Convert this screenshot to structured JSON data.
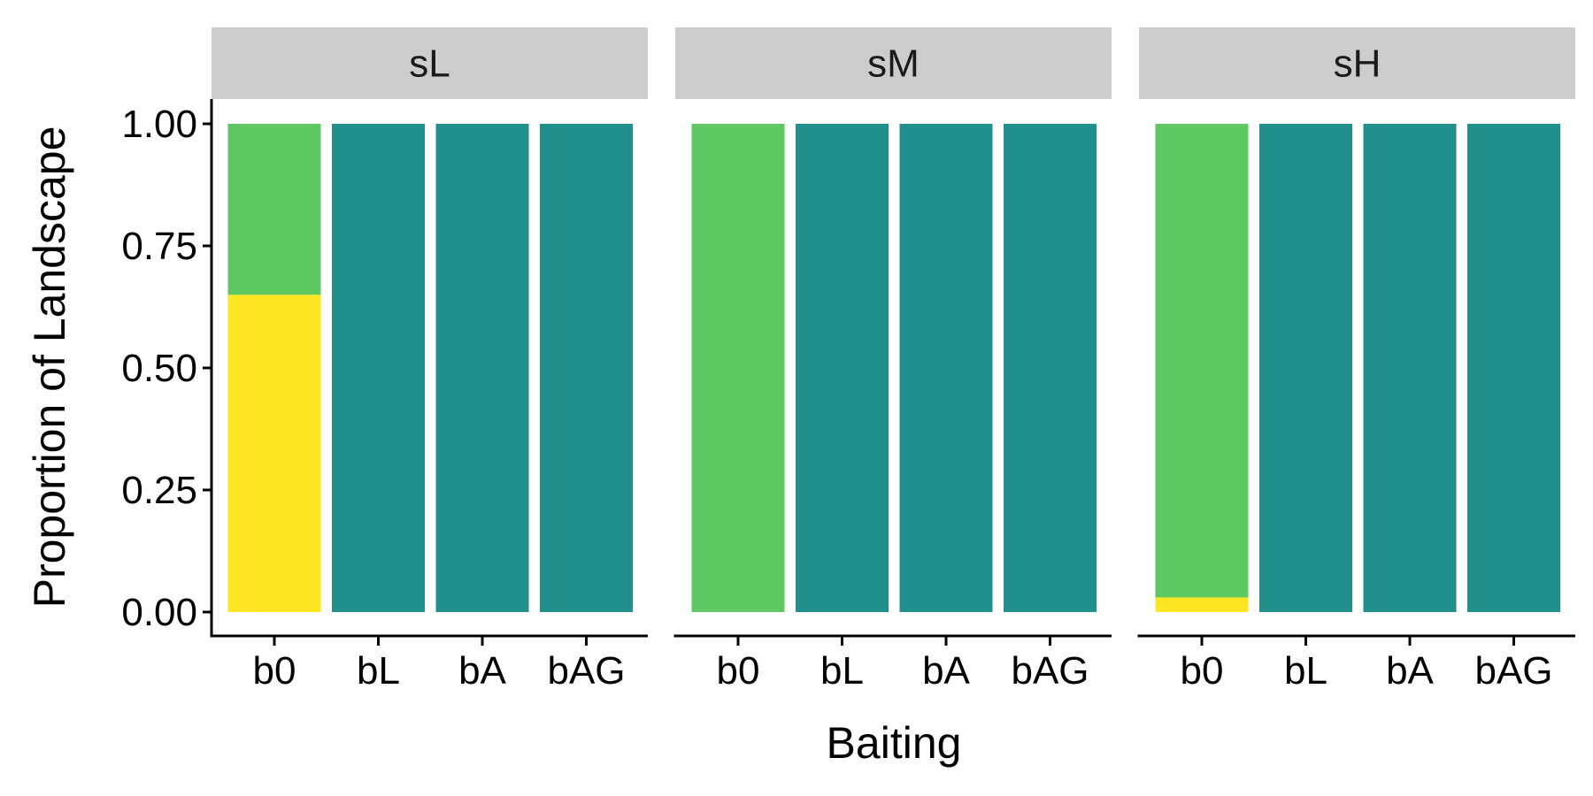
{
  "chart_data": {
    "type": "bar",
    "stacked": true,
    "xlabel": "Baiting",
    "ylabel": "Proportion of Landscape",
    "ylim": [
      0,
      1
    ],
    "yticks": [
      "0.00",
      "0.25",
      "0.50",
      "0.75",
      "1.00"
    ],
    "categories": [
      "b0",
      "bL",
      "bA",
      "bAG"
    ],
    "facets": [
      {
        "label": "sL",
        "bars": [
          {
            "category": "b0",
            "segments": [
              {
                "color": "#FDE725",
                "value": 0.65
              },
              {
                "color": "#5EC962",
                "value": 0.35
              }
            ]
          },
          {
            "category": "bL",
            "segments": [
              {
                "color": "#21908C",
                "value": 1.0
              }
            ]
          },
          {
            "category": "bA",
            "segments": [
              {
                "color": "#21908C",
                "value": 1.0
              }
            ]
          },
          {
            "category": "bAG",
            "segments": [
              {
                "color": "#21908C",
                "value": 1.0
              }
            ]
          }
        ]
      },
      {
        "label": "sM",
        "bars": [
          {
            "category": "b0",
            "segments": [
              {
                "color": "#5EC962",
                "value": 1.0
              }
            ]
          },
          {
            "category": "bL",
            "segments": [
              {
                "color": "#21908C",
                "value": 1.0
              }
            ]
          },
          {
            "category": "bA",
            "segments": [
              {
                "color": "#21908C",
                "value": 1.0
              }
            ]
          },
          {
            "category": "bAG",
            "segments": [
              {
                "color": "#21908C",
                "value": 1.0
              }
            ]
          }
        ]
      },
      {
        "label": "sH",
        "bars": [
          {
            "category": "b0",
            "segments": [
              {
                "color": "#FDE725",
                "value": 0.03
              },
              {
                "color": "#5EC962",
                "value": 0.97
              }
            ]
          },
          {
            "category": "bL",
            "segments": [
              {
                "color": "#21908C",
                "value": 1.0
              }
            ]
          },
          {
            "category": "bA",
            "segments": [
              {
                "color": "#21908C",
                "value": 1.0
              }
            ]
          },
          {
            "category": "bAG",
            "segments": [
              {
                "color": "#21908C",
                "value": 1.0
              }
            ]
          }
        ]
      }
    ],
    "colors": {
      "strip_background": "#CCCCCC",
      "axis": "#000000"
    }
  }
}
